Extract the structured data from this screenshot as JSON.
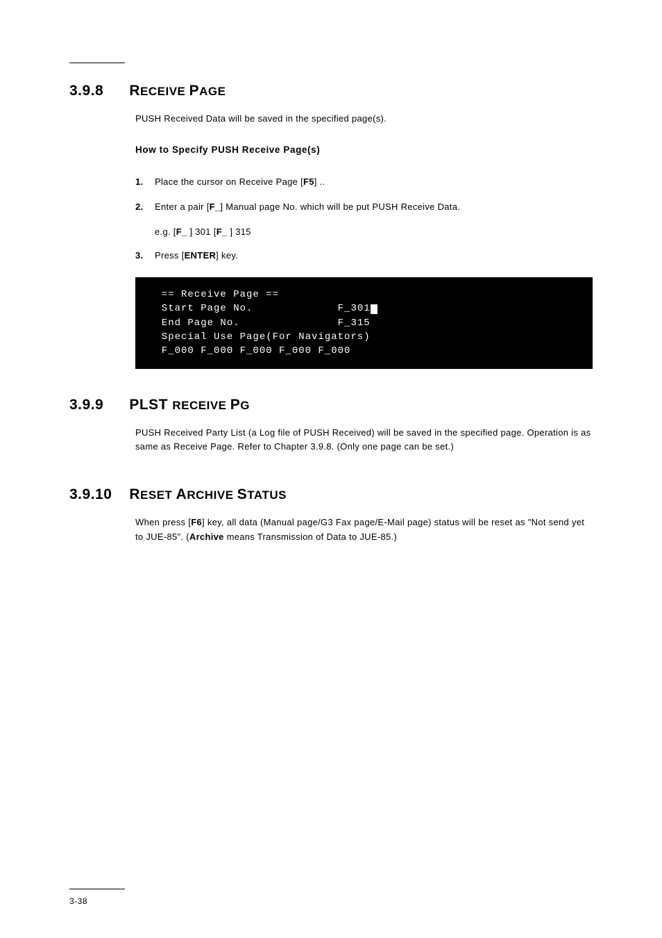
{
  "page_number": "3-38",
  "sec398": {
    "num": "3.9.8",
    "title_a": "R",
    "title_b": "ECEIVE ",
    "title_c": "P",
    "title_d": "AGE",
    "intro": "PUSH Received Data will be saved in the specified page(s).",
    "subhead": "How to Specify PUSH Receive Page(s)",
    "steps": [
      {
        "n": "1.",
        "t_pre": "Place the cursor on Receive Page ",
        "key": "F5",
        "t_post": " .."
      },
      {
        "n": "2.",
        "t_pre": "Enter a pair ",
        "f1": "F_",
        "mid": " Manual page No. which will be put PUSH Receive Data.",
        "sub_pre": "e.g. ",
        "sub_f1": "F_ ",
        "sub_mid": "301 ",
        "sub_f2": "F_ ",
        "sub_post": "315"
      },
      {
        "n": "3.",
        "t_pre": "Press ",
        "key": "ENTER",
        "t_post": " key."
      }
    ],
    "terminal": {
      "title": "  == Receive Page ==",
      "l1": "  Start Page No.",
      "l1v": "  F_301",
      "l2": "  End Page No.",
      "l2v": "  F_315",
      "l3": "  Special Use Page(For Navigators)",
      "l4": "  F_000 F_000 F_000 F_000 F_000"
    }
  },
  "sec399": {
    "num": "3.9.9",
    "title_a": "PLST ",
    "title_b": "RECEIVE ",
    "title_c": "P",
    "title_d": "G",
    "body": "PUSH Received Party List (a Log file of PUSH Received) will be saved in the specified page. Operation is as same as Receive Page. Refer to Chapter 3.9.8. (Only one page can be set.)"
  },
  "sec3910": {
    "num": "3.9.10",
    "title_a": "R",
    "title_b": "ESET ",
    "title_c": "A",
    "title_d": "RCHIVE ",
    "title_e": "S",
    "title_f": "TATUS",
    "body_pre": "When press ",
    "key": "F6",
    "body_mid": "  key, all data (Manual page/G3 Fax page/E-Mail page) status will be reset as \"Not send yet to JUE-85\". (",
    "archive": "Archive",
    "body_post": " means Transmission of Data to JUE-85.)"
  }
}
